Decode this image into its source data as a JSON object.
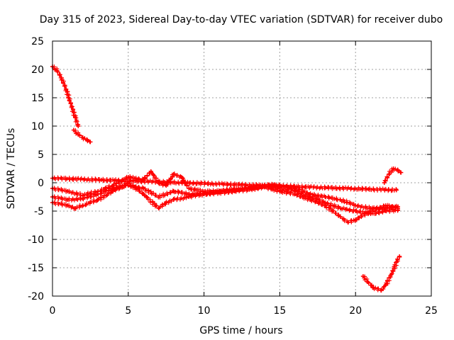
{
  "chart_data": {
    "type": "scatter",
    "title": "Day 315 of 2023, Sidereal Day-to-day VTEC variation (SDTVAR) for receiver dubo",
    "xlabel": "GPS time / hours",
    "ylabel": "SDTVAR / TECUs",
    "xlim": [
      0,
      25
    ],
    "ylim": [
      -20,
      25
    ],
    "xticks": [
      0,
      5,
      10,
      15,
      20,
      25
    ],
    "yticks": [
      -20,
      -15,
      -10,
      -5,
      0,
      5,
      10,
      15,
      20,
      25
    ],
    "grid": true,
    "marker": "plus",
    "color": "#ff0000",
    "series": [
      {
        "name": "arc-high-descending",
        "x": [
          0.0,
          0.3,
          0.6,
          0.9,
          1.2,
          1.5,
          1.7
        ],
        "y": [
          20.5,
          19.8,
          18.5,
          16.5,
          14.0,
          11.5,
          10.0
        ]
      },
      {
        "name": "arc-high-tail",
        "x": [
          1.4,
          1.7,
          2.0,
          2.3,
          2.5
        ],
        "y": [
          9.3,
          8.5,
          8.0,
          7.5,
          7.2
        ]
      },
      {
        "name": "band-upper",
        "x": [
          0,
          1,
          2,
          3,
          4,
          5,
          6,
          6.5,
          7,
          7.5,
          8,
          8.5,
          9,
          10,
          11,
          12,
          13,
          14,
          14.5,
          15,
          16,
          17,
          18,
          19,
          20,
          21,
          22,
          22.8
        ],
        "y": [
          -1.0,
          -1.5,
          -2.2,
          -1.5,
          -0.5,
          1.0,
          0.5,
          2.0,
          0.0,
          -0.5,
          1.5,
          1.0,
          -1.0,
          -1.5,
          -1.5,
          -1.2,
          -1.0,
          -0.5,
          -0.3,
          -0.5,
          -1.0,
          -2.0,
          -2.5,
          -3.0,
          -4.0,
          -4.5,
          -4.5,
          -4.2
        ]
      },
      {
        "name": "band-lower",
        "x": [
          0,
          1,
          1.5,
          2,
          3,
          4,
          5,
          6,
          7,
          7.5,
          8,
          9,
          10,
          11,
          12,
          13,
          14,
          15,
          16,
          17,
          18,
          19,
          19.5,
          20,
          21,
          22,
          22.8
        ],
        "y": [
          -3.5,
          -4.0,
          -4.5,
          -4.0,
          -3.0,
          -1.5,
          0.0,
          -2.0,
          -4.5,
          -3.5,
          -3.0,
          -2.5,
          -2.0,
          -1.8,
          -1.5,
          -1.2,
          -0.8,
          -1.5,
          -2.0,
          -3.0,
          -4.0,
          -6.0,
          -7.0,
          -6.5,
          -5.0,
          -4.0,
          -4.5
        ]
      },
      {
        "name": "band-middle",
        "x": [
          0,
          1,
          2,
          3,
          4,
          5,
          6,
          7,
          8,
          9,
          10,
          11,
          12,
          13,
          14,
          15,
          16,
          17,
          18,
          19,
          20,
          21,
          22,
          22.8
        ],
        "y": [
          -2.5,
          -3.0,
          -2.8,
          -2.0,
          -1.0,
          -0.5,
          -1.0,
          -2.5,
          -1.5,
          -2.0,
          -2.0,
          -1.5,
          -1.2,
          -1.0,
          -0.6,
          -1.0,
          -1.5,
          -2.5,
          -3.5,
          -4.5,
          -5.0,
          -5.5,
          -5.0,
          -4.8
        ]
      },
      {
        "name": "arc-low-ascending",
        "x": [
          20.5,
          20.8,
          21.2,
          21.7,
          22.0,
          22.4,
          22.7,
          22.9
        ],
        "y": [
          -16.5,
          -17.5,
          -18.5,
          -19.0,
          -18.0,
          -16.0,
          -14.0,
          -13.0
        ]
      },
      {
        "name": "arc-end-ascending",
        "x": [
          21.9,
          22.2,
          22.5,
          22.8,
          23.0
        ],
        "y": [
          0.0,
          1.5,
          2.5,
          2.2,
          1.8
        ]
      },
      {
        "name": "isolated-points",
        "x": [
          0.0,
          22.7
        ],
        "y": [
          0.8,
          -1.3
        ]
      }
    ]
  }
}
